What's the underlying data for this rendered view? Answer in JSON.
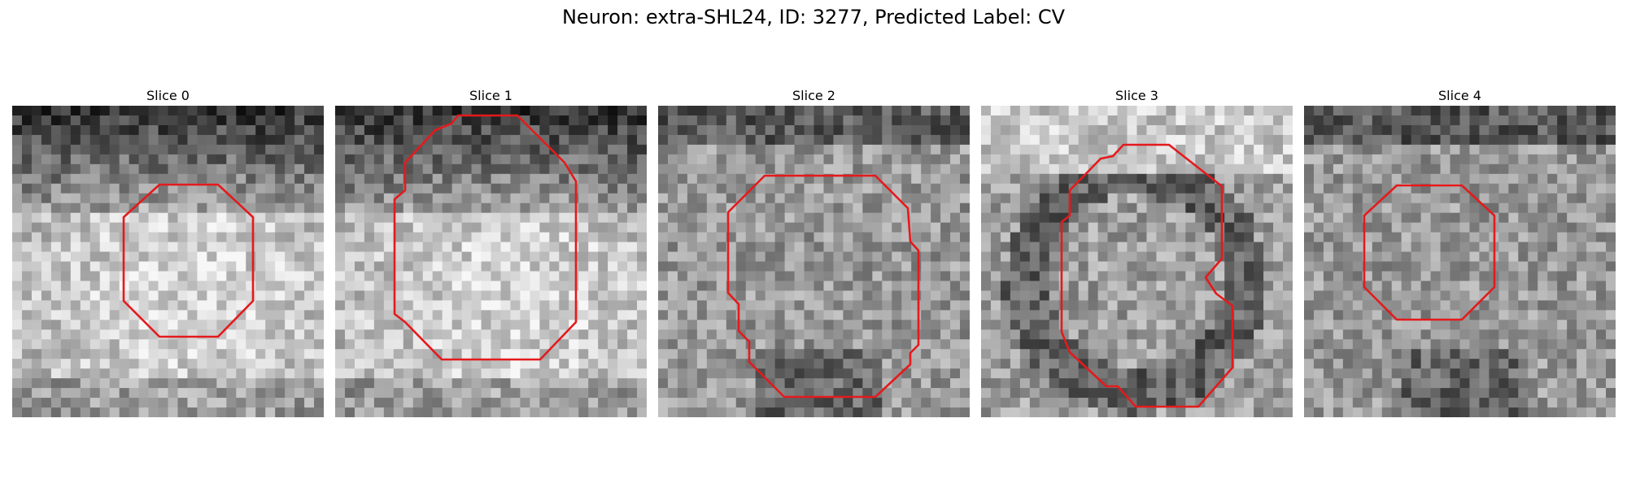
{
  "figure": {
    "title": "Neuron: extra-SHL24, ID: 3277, Predicted Label: CV"
  },
  "panels": [
    {
      "title": "Slice 0",
      "seed": 11,
      "texture": "dark-top"
    },
    {
      "title": "Slice 1",
      "seed": 23,
      "texture": "dark-top"
    },
    {
      "title": "Slice 2",
      "seed": 37,
      "texture": "speckled"
    },
    {
      "title": "Slice 3",
      "seed": 41,
      "texture": "ring"
    },
    {
      "title": "Slice 4",
      "seed": 59,
      "texture": "speckled"
    }
  ],
  "colors": {
    "contour": "#e41a1c",
    "background": "#ffffff"
  }
}
